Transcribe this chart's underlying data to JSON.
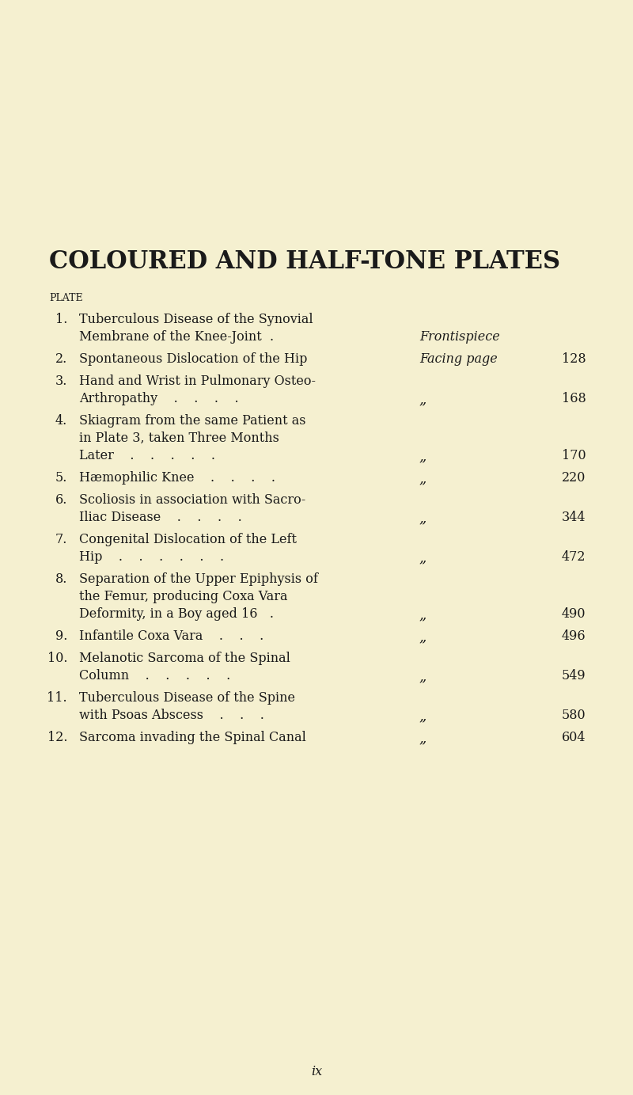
{
  "bg_color": "#f5f0d0",
  "text_color": "#1a1a1a",
  "title": "COLOURED AND HALF-TONE PLATES",
  "plate_label": "PLATE",
  "footer": "ix",
  "fig_width": 8.0,
  "fig_height": 13.83,
  "dpi": 100,
  "entries": [
    {
      "num": "1.",
      "lines": [
        "Tuberculous Disease of the Synovial",
        "Membrane of the Knee-Joint  ."
      ],
      "ref_italic": "Frontispiece",
      "page": ""
    },
    {
      "num": "2.",
      "lines": [
        "Spontaneous Dislocation of the Hip"
      ],
      "ref_italic": "Facing page",
      "page": "128"
    },
    {
      "num": "3.",
      "lines": [
        "Hand and Wrist in Pulmonary Osteo-",
        "Arthropathy    .    .    .    ."
      ],
      "ref_italic": "„",
      "page": "168"
    },
    {
      "num": "4.",
      "lines": [
        "Skiagram from the same Patient as",
        "in Plate 3, taken Three Months",
        "Later    .    .    .    .    ."
      ],
      "ref_italic": "„",
      "page": "170"
    },
    {
      "num": "5.",
      "lines": [
        "Hæmophilic Knee    .    .    .    ."
      ],
      "ref_italic": "„",
      "page": "220"
    },
    {
      "num": "6.",
      "lines": [
        "Scoliosis in association with Sacro-",
        "Iliac Disease    .    .    .    ."
      ],
      "ref_italic": "„",
      "page": "344"
    },
    {
      "num": "7.",
      "lines": [
        "Congenital Dislocation of the Left",
        "Hip    .    .    .    .    .    ."
      ],
      "ref_italic": "„",
      "page": "472"
    },
    {
      "num": "8.",
      "lines": [
        "Separation of the Upper Epiphysis of",
        "the Femur, producing Coxa Vara",
        "Deformity, in a Boy aged 16   ."
      ],
      "ref_italic": "„",
      "page": "490"
    },
    {
      "num": "9.",
      "lines": [
        "Infantile Coxa Vara    .    .    ."
      ],
      "ref_italic": "„",
      "page": "496"
    },
    {
      "num": "10.",
      "lines": [
        "Melanotic Sarcoma of the Spinal",
        "Column    .    .    .    .    ."
      ],
      "ref_italic": "„",
      "page": "549"
    },
    {
      "num": "11.",
      "lines": [
        "Tuberculous Disease of the Spine",
        "with Psoas Abscess    .    .    ."
      ],
      "ref_italic": "„",
      "page": "580"
    },
    {
      "num": "12.",
      "lines": [
        "Sarcoma invading the Spinal Canal"
      ],
      "ref_italic": "„",
      "page": "604"
    }
  ]
}
